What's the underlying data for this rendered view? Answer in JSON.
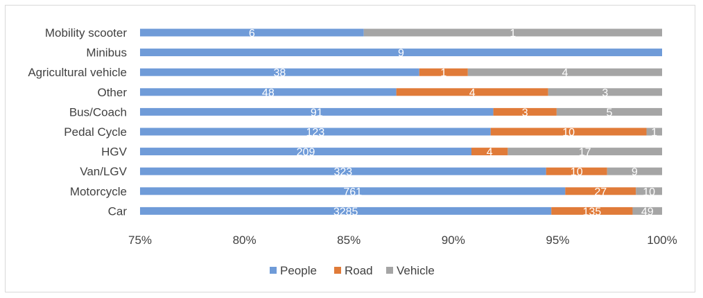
{
  "chart_data": {
    "type": "bar",
    "orientation": "horizontal",
    "stacked": "percent",
    "categories": [
      "Mobility scooter",
      "Minibus",
      "Agricultural vehicle",
      "Other",
      "Bus/Coach",
      "Pedal Cycle",
      "HGV",
      "Van/LGV",
      "Motorcycle",
      "Car"
    ],
    "series": [
      {
        "name": "People",
        "color": "#6f9bd8",
        "values": [
          6,
          9,
          38,
          48,
          91,
          123,
          209,
          323,
          761,
          3285
        ]
      },
      {
        "name": "Road",
        "color": "#e07b39",
        "values": [
          0,
          0,
          1,
          4,
          3,
          10,
          4,
          10,
          27,
          135
        ]
      },
      {
        "name": "Vehicle",
        "color": "#a5a5a5",
        "values": [
          1,
          0,
          4,
          3,
          5,
          1,
          17,
          9,
          10,
          49
        ]
      }
    ],
    "x_ticks": [
      "75%",
      "80%",
      "85%",
      "90%",
      "95%",
      "100%"
    ],
    "xlim": [
      0.75,
      1.0
    ],
    "grid": false,
    "legend_position": "bottom",
    "title": "",
    "xlabel": "",
    "ylabel": ""
  }
}
